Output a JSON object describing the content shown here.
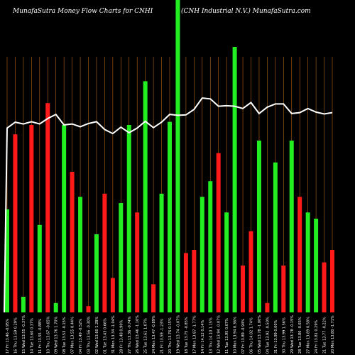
{
  "header": {
    "title": "MunafaSutra  Money Flow  Charts for CNHI",
    "subtitle": "(CNH Industrial N.V.) MunafaSutra.com"
  },
  "colors": {
    "background": "#000000",
    "gridline": "#b5651d",
    "up_bar": "#22ee22",
    "down_bar": "#ff1a1a",
    "price_line": "#ffffff"
  },
  "chart_data": {
    "type": "bar",
    "title": "MunafaSutra  Money Flow  Charts for CNHI",
    "subtitle": "(CNH Industrial N.V.) MunafaSutra.com",
    "categories": [
      "17 Fri 13.46 -0.95%",
      "16 Thu 13.59 0.29%",
      "15 Wed 13.55 -0.37%",
      "14 Tue 13.60 0.37%",
      "11 Fri 13.55 -0.88%",
      "10 Thu 13.67 -0.65%",
      "09 Wed 13.76 1.70%",
      "08 Tue 13.53 -0.15%",
      "07 Mon 13.55 0.44%",
      "04 Fri 13.49 -0.52%",
      "03 Thu 13.56 -0.30%",
      "02 Wed 13.60 1.28%",
      "01 Tue 13.43 0.66%",
      "31 Mon 13.34 -1.04%",
      "28 Fri 13.48 0.90%",
      "27 Thu 13.36 -0.74%",
      "26 Wed 13.46 -1.10%",
      "25 Tue 13.61 1.07%",
      "24 Mon 13.47 -0.89%",
      "21 Fri 13.59 -1.23%",
      "20 Thu 13.76 0.15%",
      "19 Wed 13.74 -0.07%",
      "18 Tue 13.75 -0.85%",
      "17 Mon 13.87 -1.77%",
      "14 Fri 14.12 0.14%",
      "13 Thu 14.10 1.15%",
      "12 Wed 13.94 -0.07%",
      "11 Tue 13.95 0.07%",
      "10 Mon 13.94 0.36%",
      "07 Fri 13.89 -0.94%",
      "06 Thu 14.02 1.74%",
      "05 Wed 13.78 -1.00%",
      "04 Tue 13.92 -0.50%",
      "31 Fri 13.99 0.00%",
      "30 Thu 13.99 1.56%",
      "29 Wed 13.78 -0.15%",
      "28 Tue 13.80 -0.65%",
      "27 Mon 13.89 0.58%",
      "24 Fri 13.81 0.29%",
      "21 Tue 13.77 -0.22%",
      "20 Mon 13.80 -1.71%"
    ],
    "series": [
      {
        "values": [
          33,
          57,
          5,
          60,
          28,
          67,
          3,
          60,
          45,
          37,
          2,
          25,
          38,
          11,
          35,
          60,
          32,
          74,
          9,
          38,
          61,
          100,
          19,
          20,
          37,
          42,
          51,
          32,
          85,
          15,
          26,
          55,
          3,
          48,
          15,
          55,
          37,
          32,
          30,
          16,
          20
        ]
      },
      {
        "values": [
          8,
          20,
          0,
          37,
          0,
          5,
          0,
          17,
          0,
          9,
          0,
          37,
          14,
          0,
          16,
          0,
          39,
          0,
          18,
          0,
          41,
          0,
          5,
          24,
          0,
          0,
          0,
          16,
          0,
          0,
          0,
          0,
          11,
          0,
          0,
          0,
          0,
          0,
          0,
          0,
          0
        ]
      }
    ],
    "bar_colors": [
      "green",
      "red",
      "green",
      "red",
      "green",
      "red",
      "green",
      "green",
      "red",
      "green",
      "red",
      "green",
      "red",
      "red",
      "green",
      "green",
      "red",
      "green",
      "red",
      "green",
      "green",
      "green",
      "red",
      "red",
      "green",
      "green",
      "red",
      "green",
      "green",
      "red",
      "red",
      "green",
      "red",
      "green",
      "red",
      "green",
      "red",
      "green",
      "green",
      "red",
      "red"
    ],
    "price": [
      13.46,
      13.59,
      13.55,
      13.6,
      13.55,
      13.67,
      13.76,
      13.53,
      13.55,
      13.49,
      13.56,
      13.6,
      13.43,
      13.34,
      13.48,
      13.36,
      13.46,
      13.61,
      13.47,
      13.59,
      13.76,
      13.74,
      13.75,
      13.87,
      14.12,
      14.1,
      13.94,
      13.95,
      13.94,
      13.89,
      14.02,
      13.78,
      13.92,
      13.99,
      13.99,
      13.78,
      13.8,
      13.89,
      13.81,
      13.77,
      13.8
    ],
    "xlabel": "",
    "ylabel": "",
    "grid": "vertical",
    "ylim": [
      0,
      100
    ]
  }
}
